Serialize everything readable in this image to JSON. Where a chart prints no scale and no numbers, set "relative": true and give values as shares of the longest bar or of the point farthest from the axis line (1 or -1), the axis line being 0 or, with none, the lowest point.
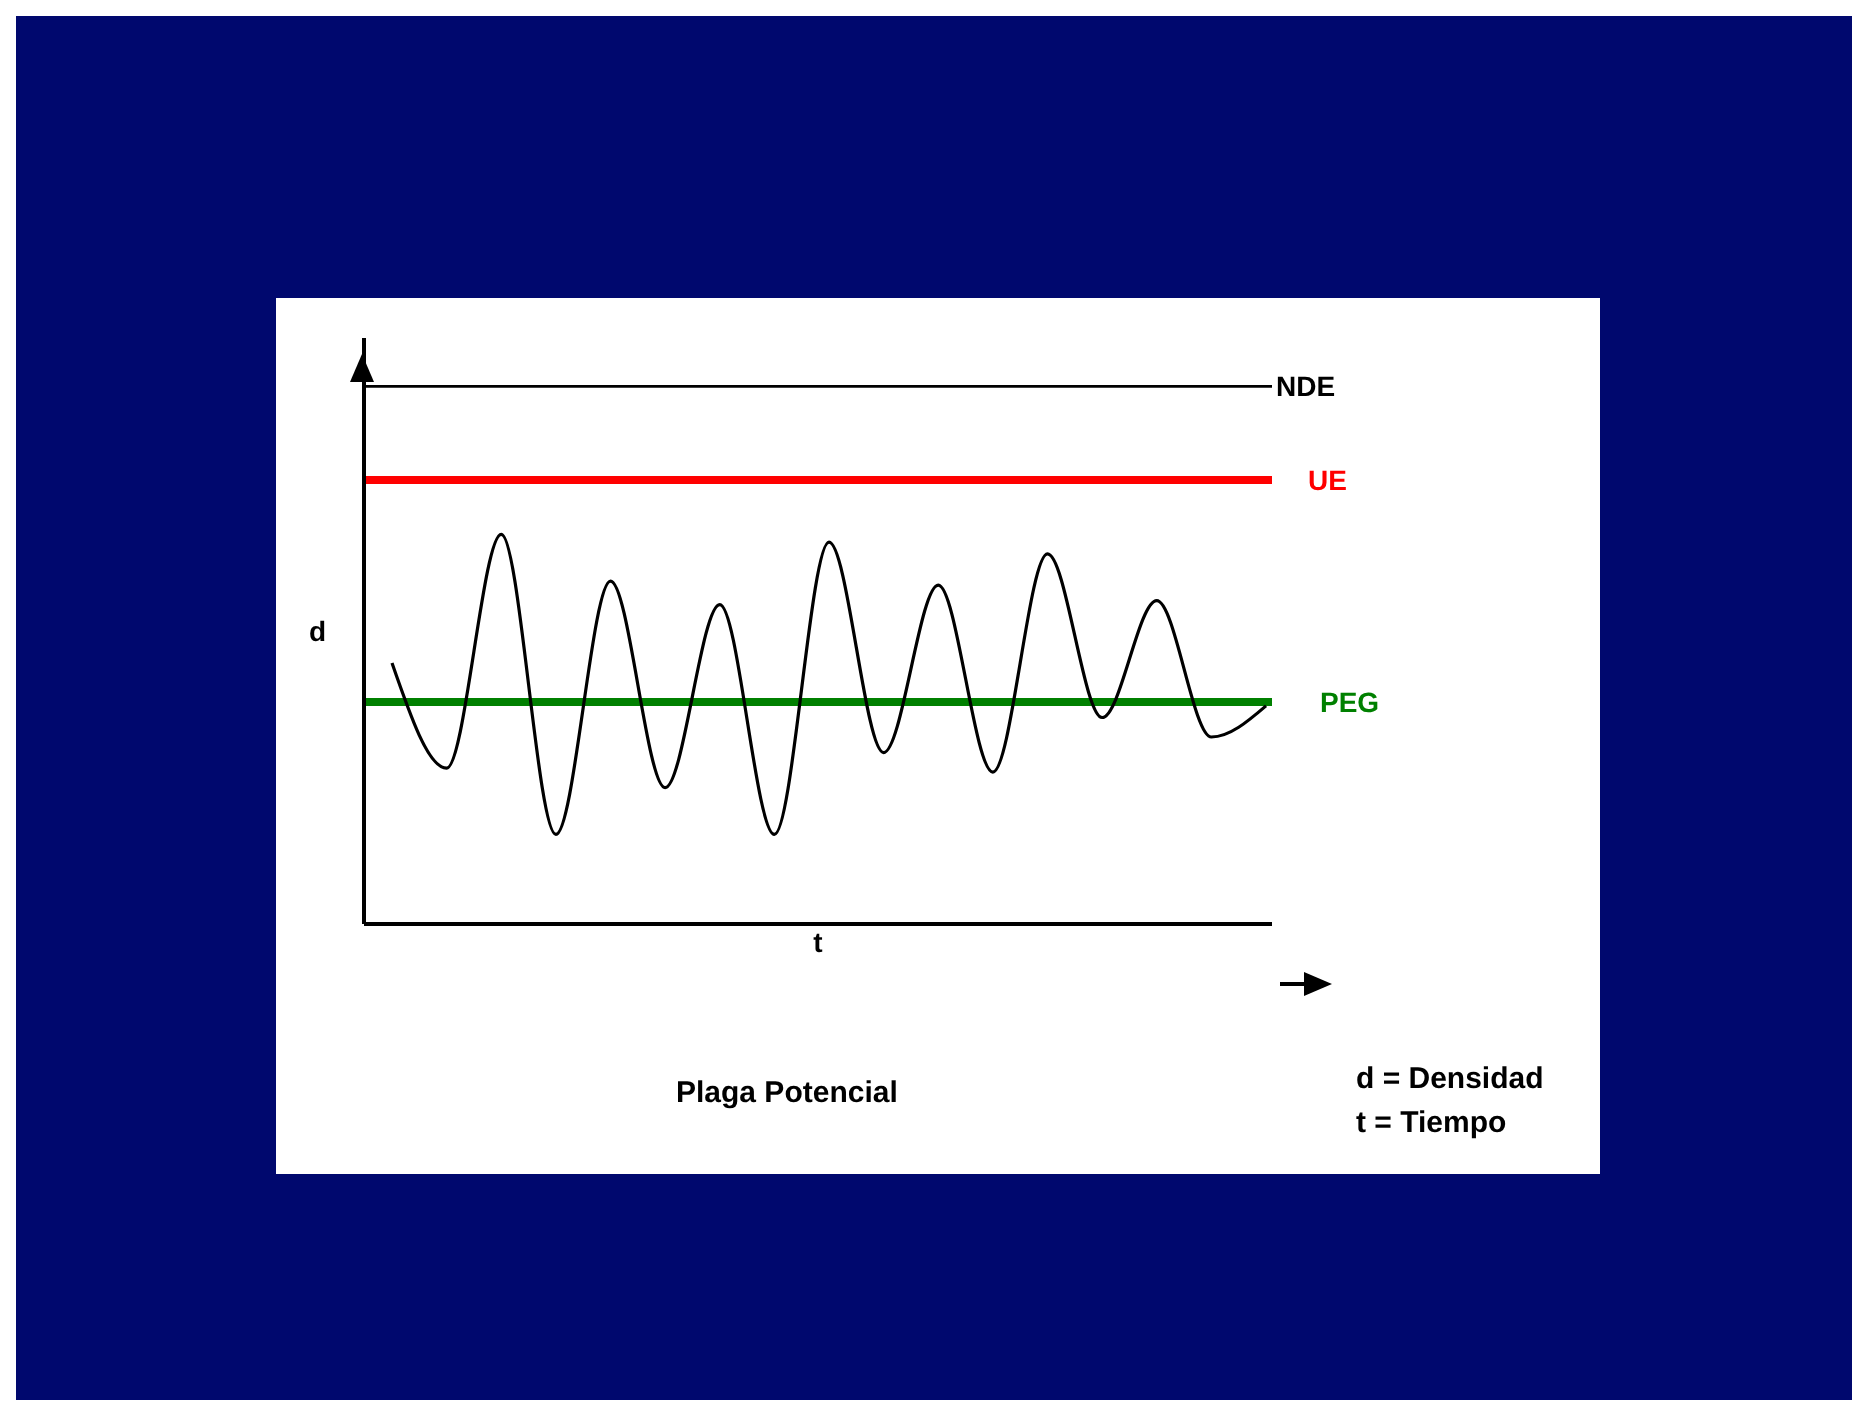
{
  "chart_data": {
    "type": "line",
    "relative": true,
    "title": "Plaga Potencial",
    "xlabel": "t",
    "ylabel": "d",
    "categories": [
      null,
      null,
      null,
      null,
      null,
      null,
      null,
      null,
      null,
      null,
      null,
      null,
      null,
      null,
      null,
      null,
      null
    ],
    "series": [
      {
        "color": "#000000",
        "values": [
          0.67,
          0.4,
          1.0,
          0.23,
          0.88,
          0.35,
          0.82,
          0.23,
          0.98,
          0.44,
          0.87,
          0.39,
          0.95,
          0.53,
          0.83,
          0.48,
          0.56
        ]
      }
    ],
    "ref_lines": [
      {
        "axis": "y",
        "value": 1.38,
        "label": "NDE",
        "color": "#000000"
      },
      {
        "axis": "y",
        "value": 1.14,
        "label": "UE",
        "color": "#ff0000"
      },
      {
        "axis": "y",
        "value": 0.57,
        "label": "PEG",
        "color": "#008000"
      }
    ],
    "annotations": [
      "d = Densidad",
      "t = Tiempo"
    ],
    "marker": "none",
    "line_style": "solid",
    "grid": false,
    "legend": false
  }
}
